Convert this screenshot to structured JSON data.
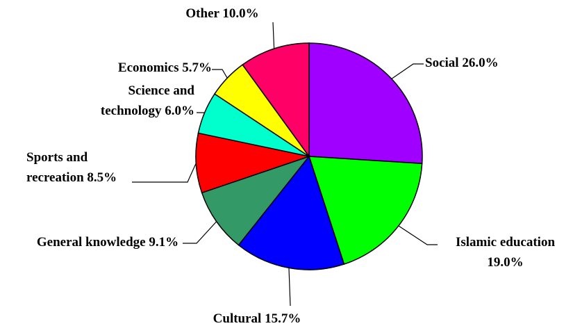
{
  "chart_data": {
    "type": "pie",
    "categories": [
      "Social",
      "Islamic education",
      "Cultural",
      "General knowledge",
      "Sports and recreation",
      "Science and technology",
      "Economics",
      "Other"
    ],
    "values": [
      26.0,
      19.0,
      15.7,
      9.1,
      8.5,
      6.0,
      5.7,
      10.0
    ],
    "value_labels": [
      "26.0%",
      "19.0%",
      "15.7%",
      "9.1%",
      "8.5%",
      "6.0%",
      "5.7%",
      "10.0%"
    ],
    "colors": [
      "#9f00ff",
      "#00ff00",
      "#0000ff",
      "#339966",
      "#ff0000",
      "#00ffcc",
      "#ffff00",
      "#ff0066"
    ]
  }
}
